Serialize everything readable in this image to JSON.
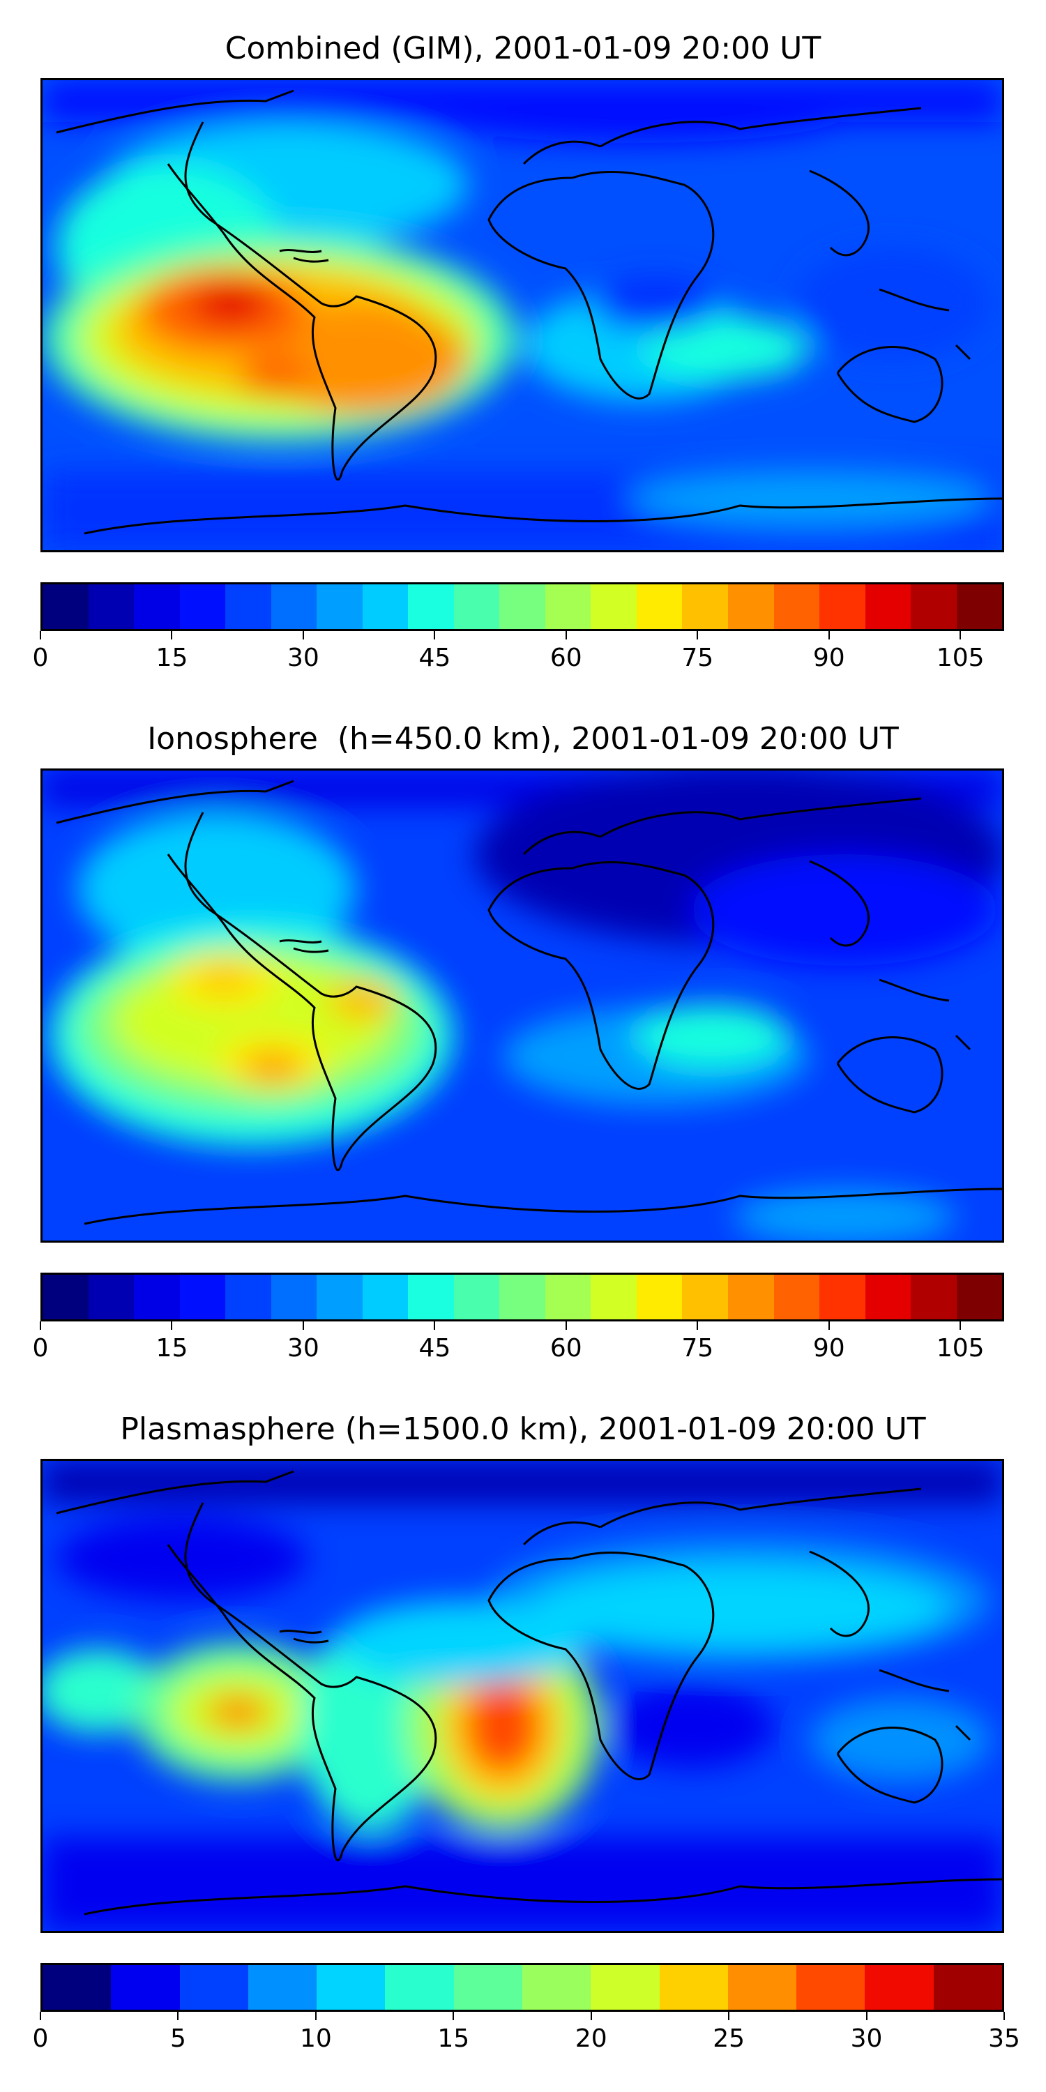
{
  "colors": {
    "combined_levels": [
      "#00007f",
      "#0000b2",
      "#0000e6",
      "#0010ff",
      "#0040ff",
      "#006eff",
      "#009eff",
      "#00ccff",
      "#19ffdf",
      "#49ffad",
      "#77ff7f",
      "#a4ff52",
      "#d2ff24",
      "#ffeb00",
      "#ffc000",
      "#ff9100",
      "#ff6200",
      "#ff3300",
      "#e50000",
      "#b10000",
      "#7f0000"
    ],
    "plasma_levels": [
      "#00007f",
      "#0000f0",
      "#0040ff",
      "#0090ff",
      "#00d4ff",
      "#29ffce",
      "#5dff9a",
      "#9aff5d",
      "#ceff29",
      "#ffd000",
      "#ff8f00",
      "#ff4a00",
      "#f00a00",
      "#a10000"
    ],
    "coastline": "#000000"
  },
  "panels": [
    {
      "title": "Combined (GIM), 2001-01-09 20:00 UT",
      "colorbar": {
        "ticks": [
          "0",
          "15",
          "30",
          "45",
          "60",
          "75",
          "90",
          "105"
        ],
        "min": 0,
        "max": 110,
        "step": 5
      }
    },
    {
      "title": "Ionosphere  (h=450.0 km), 2001-01-09 20:00 UT",
      "colorbar": {
        "ticks": [
          "0",
          "15",
          "30",
          "45",
          "60",
          "75",
          "90",
          "105"
        ],
        "min": 0,
        "max": 110,
        "step": 5
      }
    },
    {
      "title": "Plasmasphere (h=1500.0 km), 2001-01-09 20:00 UT",
      "colorbar": {
        "ticks": [
          "0",
          "5",
          "10",
          "15",
          "20",
          "25",
          "30",
          "35"
        ],
        "min": 0,
        "max": 35,
        "step": 2.5
      }
    }
  ]
}
